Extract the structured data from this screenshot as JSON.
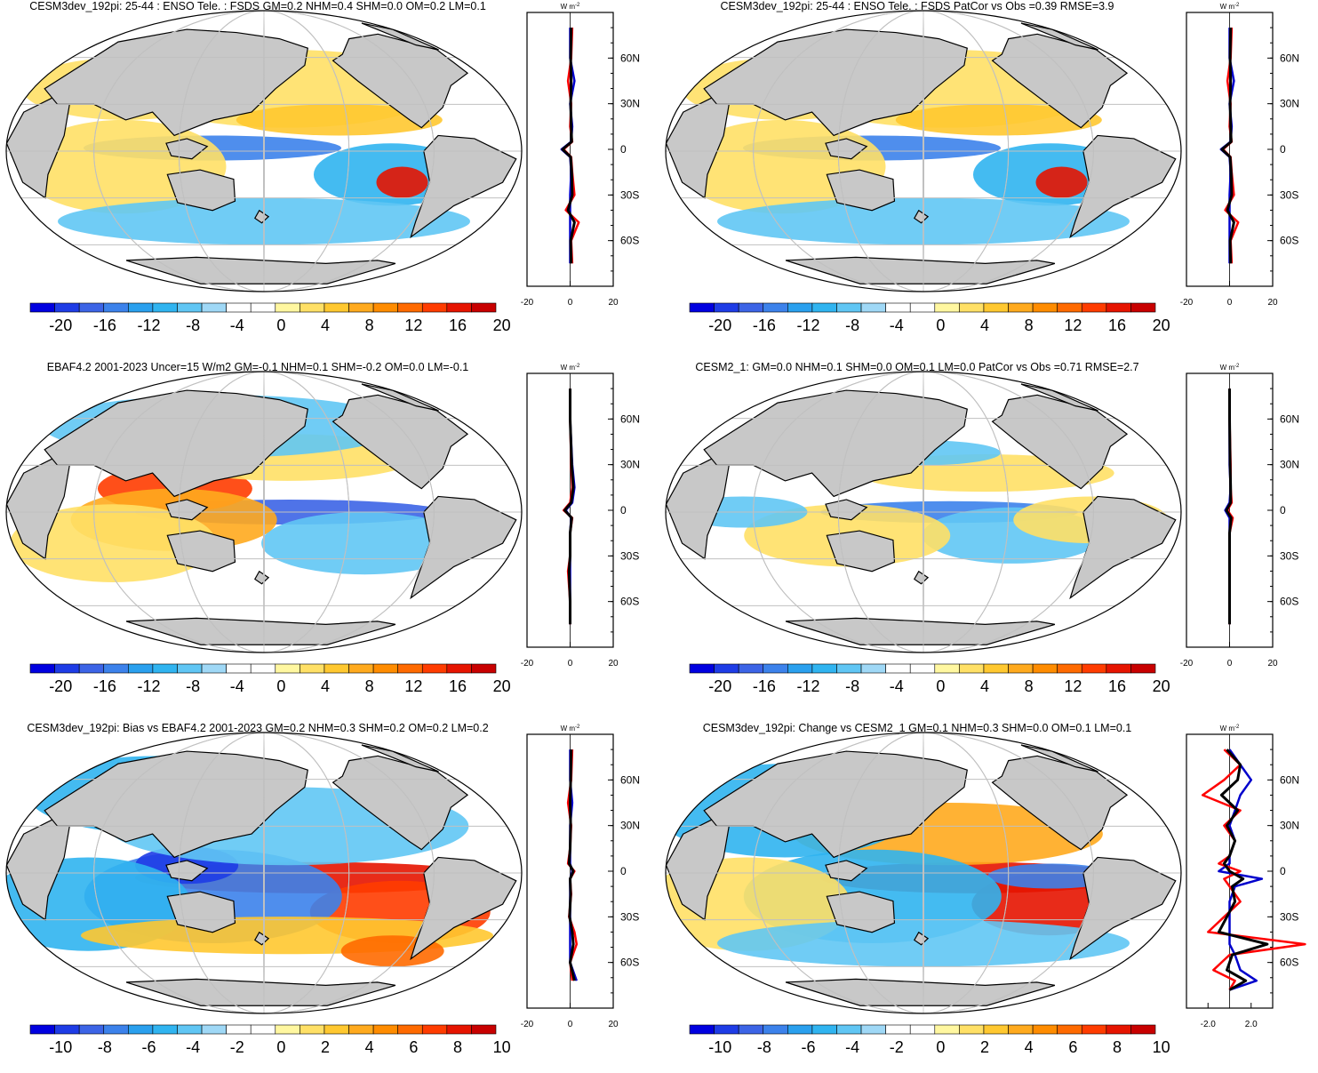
{
  "figure": {
    "units_label": "W m",
    "units_exp": "-2",
    "lat_labels": [
      "60N",
      "30N",
      "0",
      "30S",
      "60S"
    ],
    "latitudes": [
      60,
      30,
      0,
      -30,
      -60
    ],
    "colors": {
      "land": "#c8c8c8",
      "zero_fill": "#ffffff",
      "profile_model": "#ff0000",
      "profile_obs": "#0000cc",
      "profile_diff": "#000000"
    }
  },
  "panels": [
    {
      "title": "CESM3dev_192pi: 25-44 : ENSO Tele. : FSDS GM=0.2 NHM=0.4 SHM=0.0 OM=0.2 LM=0.1",
      "colorbar_labels": [
        "-20",
        "-16",
        "-12",
        "-8",
        "-4",
        "0",
        "4",
        "8",
        "12",
        "16",
        "20"
      ],
      "profile_ticks": [
        "-20",
        "0",
        "20"
      ],
      "profile_range": [
        -20,
        20
      ],
      "field": "model"
    },
    {
      "title": "CESM3dev_192pi: 25-44 : ENSO Tele. : FSDS PatCor vs Obs =0.39 RMSE=3.9",
      "colorbar_labels": [
        "-20",
        "-16",
        "-12",
        "-8",
        "-4",
        "0",
        "4",
        "8",
        "12",
        "16",
        "20"
      ],
      "profile_ticks": [
        "-20",
        "0",
        "20"
      ],
      "profile_range": [
        -20,
        20
      ],
      "field": "model"
    },
    {
      "title": "EBAF4.2 2001-2023 Uncer=15 W/m2 GM=-0.1 NHM=0.1 SHM=-0.2 OM=0.0 LM=-0.1",
      "colorbar_labels": [
        "-20",
        "-16",
        "-12",
        "-8",
        "-4",
        "0",
        "4",
        "8",
        "12",
        "16",
        "20"
      ],
      "profile_ticks": [
        "-20",
        "0",
        "20"
      ],
      "profile_range": [
        -20,
        20
      ],
      "field": "obs"
    },
    {
      "title": "CESM2_1: GM=0.0 NHM=0.1 SHM=0.0 OM=0.1 LM=0.0 PatCor vs Obs =0.71 RMSE=2.7",
      "colorbar_labels": [
        "-20",
        "-16",
        "-12",
        "-8",
        "-4",
        "0",
        "4",
        "8",
        "12",
        "16",
        "20"
      ],
      "profile_ticks": [
        "-20",
        "0",
        "20"
      ],
      "profile_range": [
        -20,
        20
      ],
      "field": "cesm2"
    },
    {
      "title": "CESM3dev_192pi: Bias vs EBAF4.2 2001-2023 GM=0.2 NHM=0.3 SHM=0.2 OM=0.2 LM=0.2",
      "colorbar_labels": [
        "-10",
        "-8",
        "-6",
        "-4",
        "-2",
        "0",
        "2",
        "4",
        "6",
        "8",
        "10"
      ],
      "profile_ticks": [
        "-20",
        "0",
        "20"
      ],
      "profile_range": [
        -20,
        20
      ],
      "field": "bias"
    },
    {
      "title": "CESM3dev_192pi: Change vs CESM2_1 GM=0.1 NHM=0.3 SHM=0.0 OM=0.1 LM=0.1",
      "colorbar_labels": [
        "-10",
        "-8",
        "-6",
        "-4",
        "-2",
        "0",
        "2",
        "4",
        "6",
        "8",
        "10"
      ],
      "profile_ticks": [
        "-2.0",
        "2.0"
      ],
      "profile_range": [
        -4,
        4
      ],
      "field": "change"
    }
  ],
  "chart_data": [
    {
      "type": "heatmap",
      "title": "CESM3dev_192pi: 25-44 : ENSO Tele. : FSDS GM=0.2 NHM=0.4 SHM=0.0 OM=0.2 LM=0.1",
      "colorbar": [
        -20,
        -16,
        -12,
        -8,
        -4,
        0,
        4,
        8,
        12,
        16,
        20
      ],
      "zonal_profile": {
        "lat": [
          80,
          60,
          45,
          30,
          15,
          5,
          0,
          -5,
          -15,
          -30,
          -40,
          -48,
          -60,
          -75
        ],
        "model": [
          1,
          0.5,
          -1,
          0.5,
          0,
          1,
          -3,
          0.5,
          1,
          2,
          -2,
          4,
          0.5,
          1
        ],
        "obs": [
          0,
          0,
          2,
          0,
          1,
          0.5,
          -4,
          0,
          0.5,
          0,
          0,
          0,
          0,
          0
        ]
      },
      "xlim_profile": [
        -20,
        20
      ]
    },
    {
      "type": "heatmap",
      "title": "CESM3dev_192pi: 25-44 : ENSO Tele. : FSDS PatCor vs Obs =0.39 RMSE=3.9",
      "colorbar": [
        -20,
        -16,
        -12,
        -8,
        -4,
        0,
        4,
        8,
        12,
        16,
        20
      ],
      "zonal_profile": {
        "lat": [
          80,
          60,
          45,
          30,
          15,
          5,
          0,
          -5,
          -15,
          -30,
          -40,
          -48,
          -60,
          -75
        ],
        "model": [
          1,
          0.5,
          -1,
          0.5,
          0,
          1,
          -3,
          0.5,
          1,
          2,
          -2,
          4,
          0.5,
          1
        ],
        "obs": [
          0,
          0,
          2,
          0,
          1,
          0.5,
          -4,
          0,
          0.5,
          0,
          0,
          0,
          0,
          0
        ]
      },
      "xlim_profile": [
        -20,
        20
      ]
    },
    {
      "type": "heatmap",
      "title": "EBAF4.2 2001-2023 Uncer=15 W/m2 GM=-0.1 NHM=0.1 SHM=-0.2 OM=0.0 LM=-0.1",
      "colorbar": [
        -20,
        -16,
        -12,
        -8,
        -4,
        0,
        4,
        8,
        12,
        16,
        20
      ],
      "zonal_profile": {
        "lat": [
          80,
          60,
          30,
          15,
          5,
          0,
          -5,
          -15,
          -30,
          -40,
          -60,
          -75
        ],
        "model": [
          0,
          0,
          0.5,
          1,
          0,
          -3,
          1,
          0,
          0,
          -1,
          0,
          0
        ],
        "obs": [
          0,
          0,
          1,
          2,
          1,
          -2,
          0.5,
          0,
          0,
          0,
          0,
          0
        ]
      },
      "xlim_profile": [
        -20,
        20
      ]
    },
    {
      "type": "heatmap",
      "title": "CESM2_1: GM=0.0 NHM=0.1 SHM=0.0 OM=0.1 LM=0.0 PatCor vs Obs =0.71 RMSE=2.7",
      "colorbar": [
        -20,
        -16,
        -12,
        -8,
        -4,
        0,
        4,
        8,
        12,
        16,
        20
      ],
      "zonal_profile": {
        "lat": [
          80,
          60,
          30,
          15,
          5,
          0,
          -5,
          -15,
          -30,
          -60,
          -75
        ],
        "model": [
          0,
          0,
          0.5,
          0.5,
          1,
          -1,
          1.5,
          0,
          0,
          0,
          0
        ],
        "obs": [
          0,
          0,
          0,
          0.5,
          0,
          -2,
          0,
          0,
          0,
          0,
          0
        ]
      },
      "xlim_profile": [
        -20,
        20
      ]
    },
    {
      "type": "heatmap",
      "title": "CESM3dev_192pi: Bias vs EBAF4.2 2001-2023 GM=0.2 NHM=0.3 SHM=0.2 OM=0.2 LM=0.2",
      "colorbar": [
        -10,
        -8,
        -6,
        -4,
        -2,
        0,
        2,
        4,
        6,
        8,
        10
      ],
      "zonal_profile": {
        "lat": [
          80,
          60,
          45,
          30,
          15,
          5,
          0,
          -5,
          -15,
          -30,
          -40,
          -48,
          -60,
          -72
        ],
        "model": [
          1,
          0.5,
          -1,
          0.5,
          0,
          -1,
          2,
          0,
          0.5,
          -0.5,
          2,
          3,
          0,
          1
        ],
        "obs": [
          0,
          0,
          1,
          0,
          0,
          0,
          1,
          0,
          0,
          0,
          0,
          0,
          0,
          3
        ]
      },
      "xlim_profile": [
        -20,
        20
      ]
    },
    {
      "type": "heatmap",
      "title": "CESM3dev_192pi: Change vs CESM2_1 GM=0.1 NHM=0.3 SHM=0.0 OM=0.1 LM=0.1",
      "colorbar": [
        -10,
        -8,
        -6,
        -4,
        -2,
        0,
        2,
        4,
        6,
        8,
        10
      ],
      "zonal_profile": {
        "lat": [
          80,
          70,
          60,
          50,
          40,
          30,
          20,
          10,
          5,
          0,
          -5,
          -10,
          -20,
          -30,
          -40,
          -48,
          -55,
          -65,
          -72,
          -78
        ],
        "model": [
          -0.5,
          1,
          -0.5,
          -2.5,
          1,
          -0.5,
          0.5,
          0,
          -1,
          1,
          -0.5,
          0,
          1,
          -0.5,
          -2,
          7,
          0,
          -1.5,
          0.5,
          0
        ],
        "obs": [
          0,
          1,
          2,
          1,
          0.5,
          0,
          0.5,
          0,
          0,
          -1,
          3,
          0.5,
          0,
          0,
          0,
          0,
          0.5,
          1,
          2.5,
          0
        ]
      },
      "xlim_profile": [
        -4,
        4
      ]
    }
  ]
}
